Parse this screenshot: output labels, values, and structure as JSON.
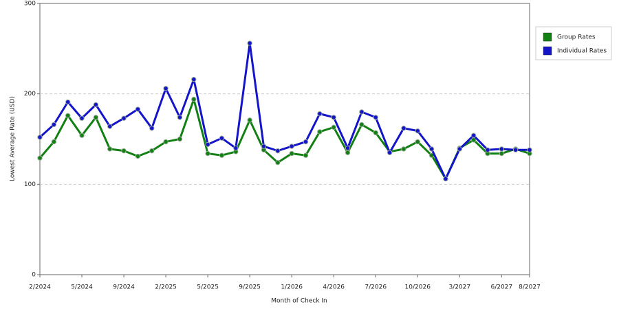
{
  "chart_data": {
    "type": "line",
    "xlabel": "Month of Check In",
    "ylabel": "Lowest Average Rate (USD)",
    "categories": [
      "2/2024",
      null,
      null,
      "5/2024",
      null,
      null,
      "9/2024",
      null,
      null,
      "2/2025",
      null,
      null,
      "5/2025",
      null,
      null,
      "9/2025",
      null,
      null,
      "1/2026",
      null,
      null,
      "4/2026",
      null,
      null,
      "7/2026",
      null,
      null,
      "10/2026",
      null,
      null,
      "3/2027",
      null,
      null,
      "6/2027",
      null,
      "8/2027"
    ],
    "series": [
      {
        "name": "Group Rates",
        "color": "#138013",
        "values": [
          129,
          147,
          176,
          154,
          174,
          139,
          137,
          131,
          137,
          147,
          150,
          194,
          134,
          132,
          136,
          171,
          138,
          124,
          134,
          132,
          158,
          163,
          135,
          166,
          157,
          136,
          139,
          147,
          132,
          106,
          140,
          149,
          134,
          134,
          139,
          134
        ]
      },
      {
        "name": "Individual Rates",
        "color": "#1414c8",
        "values": [
          152,
          166,
          191,
          173,
          188,
          164,
          173,
          183,
          162,
          206,
          174,
          216,
          144,
          151,
          140,
          256,
          142,
          137,
          142,
          147,
          178,
          174,
          140,
          180,
          174,
          135,
          162,
          159,
          139,
          106,
          139,
          154,
          138,
          139,
          138,
          138
        ]
      }
    ],
    "ylim": [
      0,
      300
    ],
    "yticks": [
      0,
      100,
      200,
      300
    ],
    "grid": true,
    "legend": "right"
  }
}
